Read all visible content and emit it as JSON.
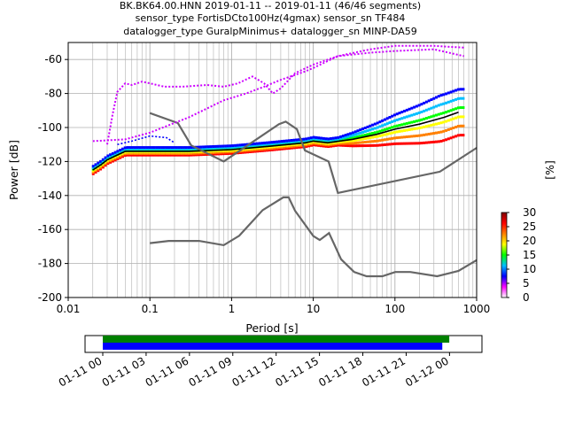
{
  "chart_data": [
    {
      "type": "heatmap",
      "title_lines": [
        "BK.BK64.00.HNN   2019-01-11 -- 2019-01-11  (46/46 segments)",
        "sensor_type FortisDCto100Hz(4gmax) sensor_sn TF484",
        "datalogger_type GuralpMinimus+ datalogger_sn MINP-DA59"
      ],
      "xlabel": "Period [s]",
      "ylabel": "Power [dB]",
      "xscale": "log",
      "xlim": [
        0.01,
        1000
      ],
      "ylim": [
        -200,
        -50
      ],
      "xticks": [
        "0.01",
        "0.1",
        "1",
        "10",
        "100",
        "1000"
      ],
      "yticks": [
        "-200",
        "-180",
        "-160",
        "-140",
        "-120",
        "-100",
        "-80",
        "-60"
      ],
      "grid": true,
      "colorbar": {
        "label": "[%]",
        "ticks": [
          "0",
          "5",
          "10",
          "15",
          "20",
          "25",
          "30"
        ],
        "range": [
          0,
          30
        ],
        "colors": [
          "#ffffff",
          "#ff00ff",
          "#0000ff",
          "#00bfff",
          "#00ff00",
          "#ffff00",
          "#ff8000",
          "#ff0000",
          "#800000"
        ]
      },
      "series": [
        {
          "name": "",
          "role": "mode",
          "color": "#000000",
          "x": [
            0.02,
            0.025,
            0.03,
            0.05,
            0.1,
            0.3,
            1,
            3,
            8,
            10,
            15,
            30,
            60,
            100,
            200,
            400,
            600
          ],
          "y": [
            -125,
            -122,
            -119,
            -114,
            -114,
            -114,
            -113,
            -111,
            -109,
            -108,
            -109,
            -107,
            -104,
            -101,
            -98,
            -94,
            -91
          ]
        },
        {
          "name": "",
          "role": "high noise model",
          "color": "#666666",
          "x": [
            0.1,
            0.22,
            0.32,
            0.8,
            3.8,
            4.6,
            6.3,
            7.9,
            15.4,
            20,
            354.8,
            1000
          ],
          "y": [
            -91.5,
            -97.4,
            -110.5,
            -120,
            -98,
            -96.5,
            -101,
            -113.5,
            -120,
            -138.5,
            -126,
            -112
          ]
        },
        {
          "name": "",
          "role": "low noise model",
          "color": "#666666",
          "x": [
            0.1,
            0.17,
            0.4,
            0.8,
            1.24,
            2.4,
            4.3,
            5.0,
            6.0,
            10.0,
            12.0,
            15.6,
            21.9,
            31.6,
            45.0,
            70.0,
            101.0,
            154.0,
            328.0,
            600.0,
            1000.0
          ],
          "y": [
            -168,
            -166.7,
            -166.7,
            -169.2,
            -163.7,
            -148.6,
            -141.1,
            -141.1,
            -149.0,
            -163.8,
            -166.2,
            -162.1,
            -177.5,
            -185.0,
            -187.5,
            -187.5,
            -185.0,
            -185.0,
            -187.5,
            -184.4,
            -178.0
          ]
        },
        {
          "name": "",
          "role": "upper magenta trace",
          "color": "#cc00ff",
          "x": [
            0.02,
            0.05,
            0.1,
            0.3,
            0.8,
            1.5,
            2.5,
            4,
            8,
            10,
            20,
            50,
            100,
            300,
            700
          ],
          "y": [
            -108,
            -107,
            -103,
            -94,
            -84,
            -80,
            -76,
            -72,
            -67,
            -65,
            -58,
            -54,
            -52,
            -52,
            -53
          ]
        },
        {
          "name": "",
          "role": "lower magenta trace",
          "color": "#cc00ff",
          "x": [
            0.03,
            0.035,
            0.04,
            0.05,
            0.06,
            0.08,
            0.1,
            0.15,
            0.25,
            0.5,
            0.8,
            1.2,
            1.8,
            2.5,
            3.2,
            4.0,
            6.0,
            10.0,
            20.0,
            50.0,
            100.0,
            300.0,
            700.0
          ],
          "y": [
            -110,
            -92,
            -79,
            -74,
            -75,
            -73,
            -74,
            -76,
            -76,
            -75,
            -76,
            -74,
            -70,
            -74,
            -80,
            -77,
            -68,
            -63,
            -58,
            -56,
            -55,
            -54,
            -58
          ]
        },
        {
          "name": "",
          "role": "blue band",
          "color": "#0000ff",
          "x": [
            0.04,
            0.06,
            0.1,
            0.16,
            0.2
          ],
          "y": [
            -110,
            -108,
            -105,
            -106,
            -109
          ]
        }
      ]
    },
    {
      "type": "timeline",
      "xlim": [
        "2019-01-11 00:00",
        "2019-01-12 02:00"
      ],
      "xticks": [
        "01-11 00",
        "01-11 03",
        "01-11 06",
        "01-11 09",
        "01-11 12",
        "01-11 15",
        "01-11 18",
        "01-11 21",
        "01-12 00"
      ],
      "bars": [
        {
          "color": "#008000",
          "start": "2019-01-11 00:00",
          "end": "2019-01-11 23:59"
        },
        {
          "color": "#0000ff",
          "start": "2019-01-11 00:00",
          "end": "2019-01-11 23:30"
        }
      ]
    }
  ]
}
